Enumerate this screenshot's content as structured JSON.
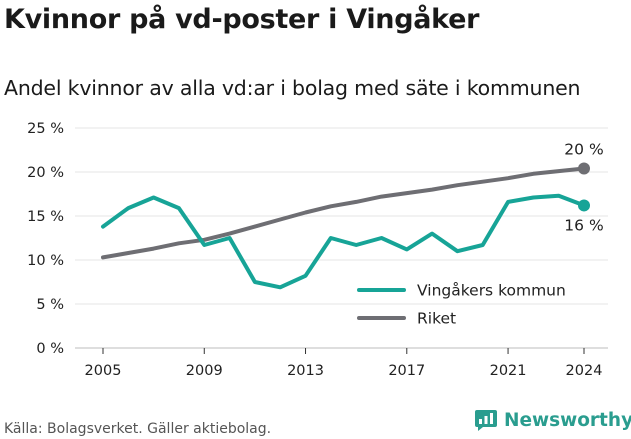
{
  "title": "Kvinnor på vd-poster i Vingåker",
  "subtitle": "Andel kvinnor av alla vd:ar i bolag med säte i kommunen",
  "source": "Källa: Bolagsverket. Gäller aktiebolag.",
  "brand": "Newsworthy",
  "colors": {
    "kommun": "#17a497",
    "riket": "#6e6e73",
    "grid": "#e6e6e6"
  },
  "chart_data": {
    "type": "line",
    "title": "Kvinnor på vd-poster i Vingåker",
    "subtitle": "Andel kvinnor av alla vd:ar i bolag med säte i kommunen",
    "x_ticks": [
      "2005",
      "2009",
      "2013",
      "2017",
      "2021",
      "2024"
    ],
    "y_ticks": [
      "0 %",
      "5 %",
      "10 %",
      "15 %",
      "20 %",
      "25 %"
    ],
    "ylim": [
      0,
      25
    ],
    "xlim": [
      2005,
      2024
    ],
    "grid": true,
    "legend_position": "bottom-right",
    "x": [
      2005,
      2006,
      2007,
      2008,
      2009,
      2010,
      2011,
      2012,
      2013,
      2014,
      2015,
      2016,
      2017,
      2018,
      2019,
      2020,
      2021,
      2022,
      2023,
      2024
    ],
    "series": [
      {
        "name": "Vingåkers kommun",
        "color": "#17a497",
        "values": [
          13.8,
          15.9,
          17.1,
          15.9,
          11.7,
          12.5,
          7.5,
          6.9,
          8.2,
          12.5,
          11.7,
          12.5,
          11.2,
          13.0,
          11.0,
          11.7,
          16.6,
          17.1,
          17.3,
          16.2
        ],
        "end_label": "16 %"
      },
      {
        "name": "Riket",
        "color": "#6e6e73",
        "values": [
          10.3,
          10.8,
          11.3,
          11.9,
          12.3,
          13.0,
          13.8,
          14.6,
          15.4,
          16.1,
          16.6,
          17.2,
          17.6,
          18.0,
          18.5,
          18.9,
          19.3,
          19.8,
          20.1,
          20.4
        ],
        "end_label": "20 %"
      }
    ]
  }
}
